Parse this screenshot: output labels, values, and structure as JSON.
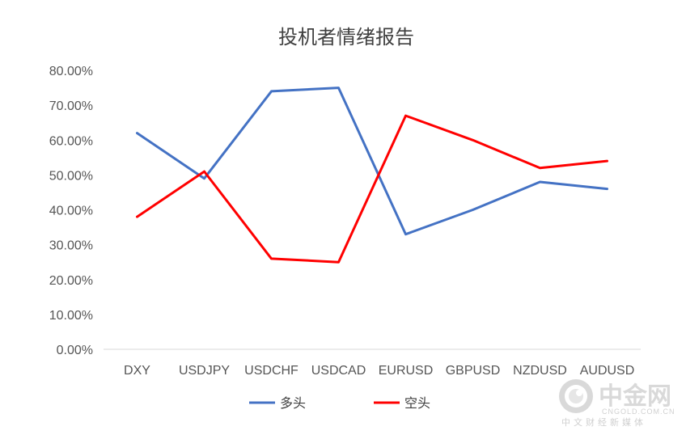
{
  "chart_data": {
    "type": "line",
    "title": "投机者情绪报告",
    "categories": [
      "DXY",
      "USDJPY",
      "USDCHF",
      "USDCAD",
      "EURUSD",
      "GBPUSD",
      "NZDUSD",
      "AUDUSD"
    ],
    "series": [
      {
        "name": "多头",
        "color": "#4472c4",
        "values": [
          0.62,
          0.49,
          0.74,
          0.75,
          0.33,
          0.4,
          0.48,
          0.46
        ]
      },
      {
        "name": "空头",
        "color": "#ff0000",
        "values": [
          0.38,
          0.51,
          0.26,
          0.25,
          0.67,
          0.6,
          0.52,
          0.54
        ]
      }
    ],
    "yticks": [
      "0.00%",
      "10.00%",
      "20.00%",
      "30.00%",
      "40.00%",
      "50.00%",
      "60.00%",
      "70.00%",
      "80.00%"
    ],
    "ylim": [
      0,
      0.8
    ],
    "grid": false,
    "legend_position": "bottom"
  },
  "watermark": {
    "name": "中金网",
    "url": "CNGOLD.COM.CN",
    "subtitle": "中文财经新媒体",
    "colors": {
      "outer": "#d9d9d9",
      "inner": "#e6e6e6"
    }
  }
}
